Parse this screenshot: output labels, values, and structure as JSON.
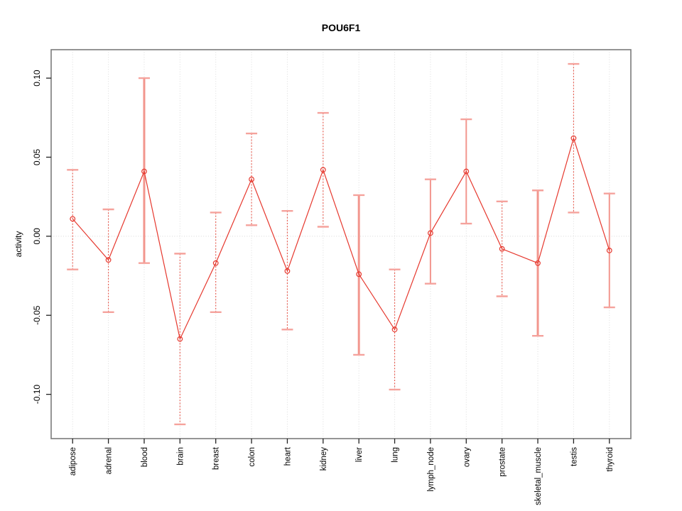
{
  "chart_data": {
    "type": "line",
    "title": "POU6F1",
    "xlabel": "",
    "ylabel": "activity",
    "legend": "none",
    "grid": "vertical dotted gridlines at each category; dotted horizontal line at y=0",
    "point_style": "open-circle",
    "categories": [
      "adipose",
      "adrenal",
      "blood",
      "brain",
      "breast",
      "colon",
      "heart",
      "kidney",
      "liver",
      "lung",
      "lymph_node",
      "ovary",
      "prostate",
      "skeletal_muscle",
      "testis",
      "thyroid"
    ],
    "series": [
      {
        "name": "activity",
        "values": [
          0.011,
          -0.015,
          0.041,
          -0.065,
          -0.017,
          0.036,
          -0.022,
          0.042,
          -0.024,
          -0.059,
          0.002,
          0.041,
          -0.008,
          -0.017,
          0.062,
          -0.009
        ]
      }
    ],
    "error_high": [
      0.042,
      0.017,
      0.1,
      -0.011,
      0.015,
      0.065,
      0.016,
      0.078,
      0.026,
      -0.021,
      0.036,
      0.074,
      0.022,
      0.029,
      0.109,
      0.027
    ],
    "error_low": [
      -0.021,
      -0.048,
      -0.017,
      -0.119,
      -0.048,
      0.007,
      -0.059,
      0.006,
      -0.075,
      -0.097,
      -0.03,
      0.008,
      -0.038,
      -0.063,
      0.015,
      -0.045
    ],
    "bar_lwd": [
      1,
      1,
      3,
      1,
      1,
      1,
      1,
      1,
      3,
      1,
      2,
      2,
      1,
      3,
      1,
      2
    ],
    "ylim": [
      -0.128,
      0.118
    ],
    "yticks": [
      0.1,
      0.05,
      0.0,
      -0.05,
      -0.1
    ],
    "ytick_labels": [
      "0.10",
      "0.05",
      "0.00",
      "-0.05",
      "-0.10"
    ],
    "colors": {
      "line": "#e6382e",
      "point": "#e6382e",
      "errorbar_thin": "#e85a4e",
      "errorbar_thick": "#f2968e",
      "cap": "#f5a29c",
      "grid": "#dcdcdc",
      "zero_line": "#d8d8d8",
      "box": "#7b7b7b",
      "tick": "#222222",
      "text": "#000000",
      "background": "#ffffff"
    }
  }
}
